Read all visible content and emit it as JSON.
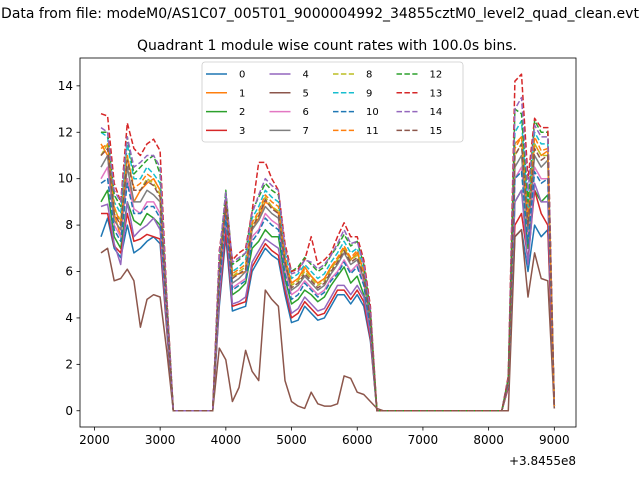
{
  "figure": {
    "suptitle": "Data from file: modeM0/AS1C07_005T01_9000004992_34855cztM0_level2_quad_clean.evt",
    "title": "Quadrant 1 module wise count rates with 100.0s bins.",
    "x_offset_label": "+3.8455e8"
  },
  "chart_data": {
    "type": "line",
    "title": "Quadrant 1 module wise count rates with 100.0s bins.",
    "xlabel": "",
    "ylabel": "",
    "x_offset": 384550000,
    "xlim": [
      1780,
      9330
    ],
    "ylim": [
      -0.7,
      15.2
    ],
    "xticks": [
      2000,
      3000,
      4000,
      5000,
      6000,
      7000,
      8000,
      9000
    ],
    "yticks": [
      0,
      2,
      4,
      6,
      8,
      10,
      12,
      14
    ],
    "grid": false,
    "legend": {
      "placement": "top-center",
      "columns": 4
    },
    "x": [
      2100,
      2200,
      2300,
      2400,
      2500,
      2600,
      2700,
      2800,
      2900,
      3000,
      3100,
      3200,
      3300,
      3400,
      3500,
      3600,
      3700,
      3800,
      3900,
      4000,
      4100,
      4200,
      4300,
      4400,
      4500,
      4600,
      4700,
      4800,
      4900,
      5000,
      5100,
      5200,
      5300,
      5400,
      5500,
      5600,
      5700,
      5800,
      5900,
      6000,
      6100,
      6200,
      6300,
      6400,
      6500,
      6600,
      6700,
      6800,
      6900,
      7000,
      7100,
      7200,
      7300,
      7400,
      7500,
      7600,
      7700,
      7800,
      7900,
      8000,
      8100,
      8200,
      8300,
      8400,
      8500,
      8600,
      8700,
      8800,
      8900,
      9000
    ],
    "series": [
      {
        "name": "0",
        "color": "#1f77b4",
        "dash": false,
        "values": [
          7.5,
          8.3,
          7.0,
          6.6,
          8.0,
          6.8,
          7.0,
          7.3,
          7.5,
          7.2,
          3.5,
          0,
          0,
          0,
          0,
          0,
          0,
          0,
          4.5,
          7.5,
          4.3,
          4.4,
          4.5,
          6.0,
          6.5,
          7.0,
          6.7,
          6.5,
          5.0,
          3.8,
          3.9,
          4.5,
          4.2,
          3.9,
          4.0,
          4.5,
          5.0,
          5.0,
          4.6,
          5.0,
          4.5,
          3.0,
          0,
          0,
          0,
          0,
          0,
          0,
          0,
          0,
          0,
          0,
          0,
          0,
          0,
          0,
          0,
          0,
          0,
          0,
          0,
          0,
          1.0,
          7.5,
          7.8,
          6.0,
          8.0,
          7.5,
          7.8,
          0.1
        ]
      },
      {
        "name": "1",
        "color": "#ff7f0e",
        "dash": false,
        "values": [
          11.5,
          11.0,
          8.5,
          7.5,
          10.0,
          9.0,
          9.5,
          9.8,
          10.0,
          9.5,
          4.5,
          0,
          0,
          0,
          0,
          0,
          0,
          0,
          6.0,
          9.0,
          5.8,
          5.9,
          6.0,
          7.8,
          8.3,
          9.0,
          8.8,
          8.5,
          6.5,
          5.5,
          5.7,
          6.2,
          5.8,
          5.5,
          5.7,
          6.2,
          6.5,
          7.0,
          6.5,
          6.8,
          6.0,
          4.0,
          0,
          0,
          0,
          0,
          0,
          0,
          0,
          0,
          0,
          0,
          0,
          0,
          0,
          0,
          0,
          0,
          0,
          0,
          0,
          0,
          1.3,
          11.5,
          11.8,
          8.5,
          11.5,
          11.0,
          11.2,
          0.2
        ]
      },
      {
        "name": "2",
        "color": "#2ca02c",
        "dash": false,
        "values": [
          9.0,
          9.5,
          7.5,
          7.0,
          9.0,
          8.2,
          8.0,
          8.5,
          8.3,
          8.0,
          4.0,
          0,
          0,
          0,
          0,
          0,
          0,
          0,
          5.2,
          8.0,
          5.0,
          5.2,
          5.5,
          7.0,
          7.3,
          7.8,
          7.5,
          7.5,
          5.7,
          4.6,
          4.8,
          5.2,
          5.0,
          4.7,
          4.9,
          5.4,
          5.8,
          6.2,
          5.5,
          5.8,
          5.0,
          3.5,
          0,
          0,
          0,
          0,
          0,
          0,
          0,
          0,
          0,
          0,
          0,
          0,
          0,
          0,
          0,
          0,
          0,
          0,
          0,
          0,
          1.1,
          9.0,
          9.5,
          7.0,
          9.5,
          9.0,
          9.3,
          0.2
        ]
      },
      {
        "name": "3",
        "color": "#d62728",
        "dash": false,
        "values": [
          8.5,
          8.5,
          7.1,
          6.8,
          8.5,
          7.3,
          7.4,
          7.6,
          7.5,
          7.4,
          3.6,
          0,
          0,
          0,
          0,
          0,
          0,
          0,
          4.7,
          7.8,
          4.5,
          4.6,
          4.7,
          6.2,
          6.7,
          7.2,
          6.9,
          6.7,
          5.2,
          4.0,
          4.2,
          4.7,
          4.4,
          4.1,
          4.2,
          4.7,
          5.2,
          5.2,
          4.8,
          5.2,
          4.7,
          3.1,
          0,
          0,
          0,
          0,
          0,
          0,
          0,
          0,
          0,
          0,
          0,
          0,
          0,
          0,
          0,
          0,
          0,
          0,
          0,
          0,
          1.0,
          8.0,
          8.5,
          6.5,
          9.5,
          8.5,
          8.0,
          0.1
        ]
      },
      {
        "name": "4",
        "color": "#9467bd",
        "dash": false,
        "values": [
          8.8,
          8.9,
          7.2,
          6.3,
          9.0,
          7.5,
          7.8,
          8.0,
          8.3,
          7.8,
          3.8,
          0,
          0,
          0,
          0,
          0,
          0,
          0,
          4.9,
          8.3,
          4.6,
          4.7,
          4.9,
          6.4,
          6.9,
          7.4,
          7.2,
          7.0,
          5.4,
          4.2,
          4.4,
          4.9,
          4.6,
          4.3,
          4.4,
          4.9,
          5.4,
          5.4,
          5.0,
          5.4,
          4.9,
          3.3,
          0,
          0,
          0,
          0,
          0,
          0,
          0,
          0,
          0,
          0,
          0,
          0,
          0,
          0,
          0,
          0,
          0,
          0,
          0,
          0,
          1.1,
          9.0,
          9.5,
          6.3,
          9.8,
          9.0,
          9.0,
          0.1
        ]
      },
      {
        "name": "5",
        "color": "#8c564b",
        "dash": false,
        "values": [
          6.8,
          7.0,
          5.6,
          5.7,
          6.1,
          5.6,
          3.6,
          4.8,
          5.0,
          4.9,
          2.6,
          0,
          0,
          0,
          0,
          0,
          0,
          0,
          2.7,
          2.2,
          0.4,
          1.0,
          2.6,
          1.7,
          1.3,
          5.2,
          4.8,
          4.5,
          1.3,
          0.4,
          0.2,
          0.1,
          0.8,
          0.3,
          0.2,
          0.2,
          0.3,
          1.5,
          1.4,
          0.8,
          0.7,
          0.4,
          0.1,
          0,
          0,
          0,
          0,
          0,
          0,
          0,
          0,
          0,
          0,
          0,
          0,
          0,
          0,
          0,
          0,
          0,
          0,
          0,
          0,
          7.5,
          7.8,
          4.9,
          6.8,
          5.7,
          5.6,
          0.1
        ]
      },
      {
        "name": "6",
        "color": "#e377c2",
        "dash": false,
        "values": [
          10.0,
          10.5,
          8.0,
          7.5,
          10.0,
          8.7,
          8.5,
          9.0,
          9.0,
          8.5,
          4.2,
          0,
          0,
          0,
          0,
          0,
          0,
          0,
          5.5,
          8.5,
          5.3,
          5.5,
          5.7,
          7.5,
          7.8,
          8.5,
          8.2,
          8.0,
          6.0,
          5.0,
          5.2,
          5.6,
          5.3,
          5.0,
          5.2,
          5.7,
          6.0,
          6.5,
          6.0,
          6.3,
          5.5,
          3.7,
          0,
          0,
          0,
          0,
          0,
          0,
          0,
          0,
          0,
          0,
          0,
          0,
          0,
          0,
          0,
          0,
          0,
          0,
          0,
          0,
          1.2,
          10.0,
          10.5,
          7.5,
          10.5,
          10.0,
          10.0,
          0.2
        ]
      },
      {
        "name": "7",
        "color": "#7f7f7f",
        "dash": false,
        "values": [
          10.5,
          11.0,
          8.2,
          7.8,
          10.5,
          9.0,
          9.0,
          9.5,
          9.3,
          9.0,
          4.3,
          0,
          0,
          0,
          0,
          0,
          0,
          0,
          5.7,
          8.8,
          5.5,
          5.7,
          6.0,
          7.8,
          8.2,
          8.8,
          8.5,
          8.3,
          6.3,
          5.2,
          5.4,
          5.8,
          5.5,
          5.2,
          5.4,
          5.9,
          6.3,
          6.8,
          6.3,
          6.5,
          5.7,
          3.8,
          0,
          0,
          0,
          0,
          0,
          0,
          0,
          0,
          0,
          0,
          0,
          0,
          0,
          0,
          0,
          0,
          0,
          0,
          0,
          0,
          1.2,
          10.5,
          11.0,
          7.8,
          11.0,
          10.5,
          10.8,
          0.2
        ]
      },
      {
        "name": "8",
        "color": "#bcbd22",
        "dash": true,
        "values": [
          11.0,
          11.5,
          8.7,
          8.2,
          11.0,
          9.5,
          9.5,
          10.0,
          9.8,
          9.3,
          4.5,
          0,
          0,
          0,
          0,
          0,
          0,
          0,
          6.0,
          9.0,
          5.8,
          6.0,
          6.2,
          8.0,
          8.5,
          9.2,
          8.8,
          8.6,
          6.5,
          5.4,
          5.6,
          6.0,
          5.7,
          5.4,
          5.6,
          6.1,
          6.5,
          7.0,
          6.5,
          6.7,
          5.9,
          4.0,
          0,
          0,
          0,
          0,
          0,
          0,
          0,
          0,
          0,
          0,
          0,
          0,
          0,
          0,
          0,
          0,
          0,
          0,
          0,
          0,
          1.3,
          11.0,
          11.5,
          8.0,
          11.5,
          11.0,
          11.0,
          0.2
        ]
      },
      {
        "name": "9",
        "color": "#17becf",
        "dash": true,
        "values": [
          12.0,
          11.8,
          9.0,
          8.5,
          11.5,
          10.0,
          10.0,
          10.5,
          10.2,
          9.8,
          4.7,
          0,
          0,
          0,
          0,
          0,
          0,
          0,
          6.2,
          9.2,
          6.0,
          6.2,
          6.5,
          8.3,
          8.8,
          9.5,
          9.2,
          9.0,
          6.8,
          5.7,
          5.9,
          6.3,
          6.0,
          5.7,
          5.9,
          6.4,
          6.8,
          7.3,
          6.8,
          7.0,
          6.1,
          4.1,
          0,
          0,
          0,
          0,
          0,
          0,
          0,
          0,
          0,
          0,
          0,
          0,
          0,
          0,
          0,
          0,
          0,
          0,
          0,
          0,
          1.4,
          12.0,
          12.5,
          8.5,
          12.0,
          11.5,
          11.5,
          0.2
        ]
      },
      {
        "name": "10",
        "color": "#1f77b4",
        "dash": true,
        "values": [
          9.8,
          10.0,
          7.8,
          7.3,
          9.8,
          8.5,
          8.5,
          8.8,
          8.8,
          8.3,
          4.1,
          0,
          0,
          0,
          0,
          0,
          0,
          0,
          5.4,
          8.4,
          5.2,
          5.4,
          5.6,
          7.3,
          7.7,
          8.3,
          8.0,
          7.8,
          5.9,
          4.8,
          5.0,
          5.5,
          5.2,
          4.9,
          5.1,
          5.6,
          5.9,
          6.4,
          5.9,
          6.2,
          5.4,
          3.6,
          0,
          0,
          0,
          0,
          0,
          0,
          0,
          0,
          0,
          0,
          0,
          0,
          0,
          0,
          0,
          0,
          0,
          0,
          0,
          0,
          1.2,
          10.0,
          10.3,
          7.2,
          10.3,
          9.8,
          10.0,
          0.2
        ]
      },
      {
        "name": "11",
        "color": "#ff7f0e",
        "dash": true,
        "values": [
          11.3,
          11.5,
          8.8,
          8.0,
          11.0,
          9.6,
          9.8,
          10.2,
          10.0,
          9.5,
          4.6,
          0,
          0,
          0,
          0,
          0,
          0,
          0,
          6.1,
          9.1,
          5.9,
          6.1,
          6.3,
          8.1,
          8.6,
          9.3,
          9.0,
          8.8,
          6.6,
          5.5,
          5.7,
          6.1,
          5.8,
          5.5,
          5.7,
          6.2,
          6.6,
          7.1,
          6.6,
          6.9,
          6.0,
          4.0,
          0,
          0,
          0,
          0,
          0,
          0,
          0,
          0,
          0,
          0,
          0,
          0,
          0,
          0,
          0,
          0,
          0,
          0,
          0,
          0,
          1.3,
          11.3,
          11.8,
          8.3,
          11.8,
          11.2,
          11.3,
          0.2
        ]
      },
      {
        "name": "12",
        "color": "#2ca02c",
        "dash": true,
        "values": [
          12.0,
          12.0,
          9.3,
          8.8,
          11.8,
          10.2,
          10.5,
          10.8,
          11.0,
          10.2,
          4.9,
          0,
          0,
          0,
          0,
          0,
          0,
          0,
          6.5,
          9.5,
          6.3,
          6.5,
          6.8,
          8.6,
          9.2,
          9.8,
          9.5,
          9.3,
          7.0,
          6.0,
          6.2,
          6.6,
          6.3,
          6.0,
          6.2,
          6.7,
          7.1,
          7.6,
          7.1,
          7.3,
          6.3,
          4.3,
          0,
          0,
          0,
          0,
          0,
          0,
          0,
          0,
          0,
          0,
          0,
          0,
          0,
          0,
          0,
          0,
          0,
          0,
          0,
          0,
          1.4,
          13.0,
          12.8,
          9.0,
          12.5,
          12.0,
          12.0,
          0.2
        ]
      },
      {
        "name": "13",
        "color": "#d62728",
        "dash": true,
        "values": [
          12.8,
          12.7,
          9.8,
          9.0,
          12.4,
          11.3,
          11.0,
          11.5,
          11.7,
          11.2,
          5.0,
          0,
          0,
          0,
          0,
          0,
          0,
          0,
          6.9,
          9.0,
          6.5,
          6.8,
          7.0,
          8.6,
          10.7,
          10.7,
          10.0,
          9.5,
          7.2,
          6.0,
          6.1,
          6.5,
          7.5,
          6.3,
          6.5,
          6.8,
          7.5,
          8.1,
          7.5,
          7.5,
          6.5,
          4.5,
          0,
          0,
          0,
          0,
          0,
          0,
          0,
          0,
          0,
          0,
          0,
          0,
          0,
          0,
          0,
          0,
          0,
          0,
          0,
          0,
          1.5,
          14.2,
          14.5,
          10.0,
          12.6,
          12.2,
          12.2,
          0.2
        ]
      },
      {
        "name": "14",
        "color": "#9467bd",
        "dash": true,
        "values": [
          12.2,
          12.0,
          9.5,
          9.0,
          11.8,
          10.5,
          10.7,
          11.0,
          11.0,
          10.5,
          4.8,
          0,
          0,
          0,
          0,
          0,
          0,
          0,
          6.7,
          9.4,
          6.4,
          6.6,
          6.8,
          8.5,
          9.3,
          10.0,
          9.7,
          9.5,
          7.0,
          5.9,
          6.0,
          6.5,
          6.4,
          6.1,
          6.3,
          6.7,
          7.2,
          7.8,
          7.2,
          7.3,
          6.3,
          4.3,
          0,
          0,
          0,
          0,
          0,
          0,
          0,
          0,
          0,
          0,
          0,
          0,
          0,
          0,
          0,
          0,
          0,
          0,
          0,
          0,
          1.4,
          13.0,
          13.5,
          9.5,
          12.3,
          11.8,
          11.8,
          0.2
        ]
      },
      {
        "name": "15",
        "color": "#8c564b",
        "dash": true,
        "values": [
          11.0,
          11.3,
          8.5,
          8.0,
          10.8,
          9.5,
          9.5,
          9.9,
          9.7,
          9.2,
          4.4,
          0,
          0,
          0,
          0,
          0,
          0,
          0,
          5.9,
          8.9,
          5.7,
          5.9,
          6.1,
          7.9,
          8.4,
          9.1,
          8.7,
          8.5,
          6.4,
          5.3,
          5.5,
          5.9,
          5.6,
          5.3,
          5.5,
          6.0,
          6.4,
          6.9,
          6.4,
          6.6,
          5.8,
          3.9,
          0,
          0,
          0,
          0,
          0,
          0,
          0,
          0,
          0,
          0,
          0,
          0,
          0,
          0,
          0,
          0,
          0,
          0,
          0,
          0,
          1.3,
          11.0,
          11.5,
          8.0,
          11.3,
          10.8,
          11.0,
          0.2
        ]
      }
    ]
  }
}
